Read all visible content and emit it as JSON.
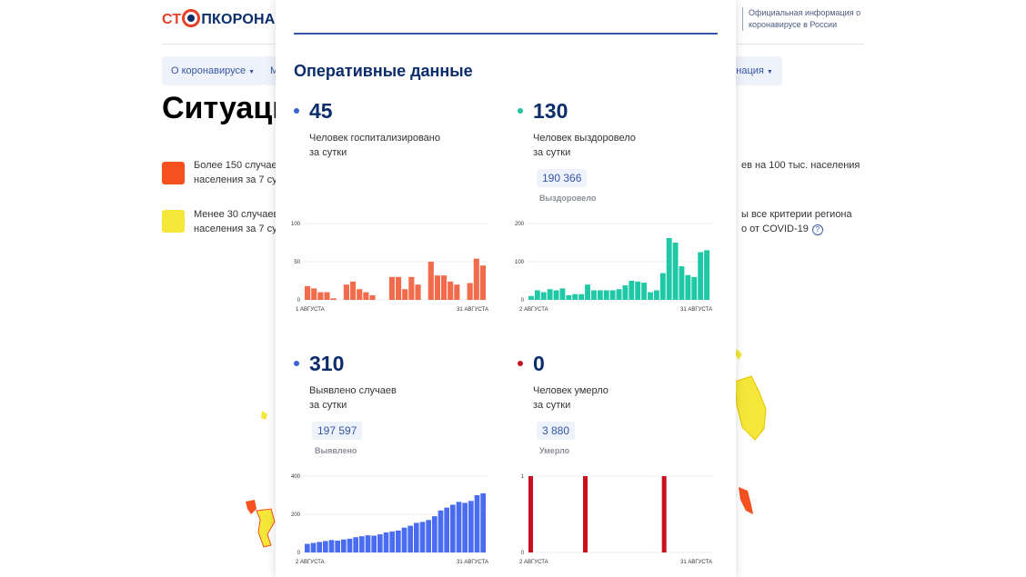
{
  "header": {
    "logo": {
      "part1": "СТ",
      "part2": "ПКОРОНАВ"
    },
    "official_info": "Официальная информация о коронавирусе в России"
  },
  "nav": {
    "about_label": "О коронавирусе",
    "second_label": "М",
    "vaccination_label": "кцинация"
  },
  "page": {
    "title": "Ситуаци"
  },
  "legend": {
    "red_color": "#f4511e",
    "yellow_color": "#f5e73a",
    "red_line1": "Более 150 случаев",
    "red_line2": "населения за 7 су",
    "red_right": "ев на 100 тыс. населения",
    "yellow_line1": "Менее 30 случаев",
    "yellow_line2": "населения за 7 су",
    "yellow_right1": "ы все критерии региона",
    "yellow_right2": "о от COVID-19",
    "help_icon": "?"
  },
  "panel": {
    "title": "Оперативные данные",
    "hosp": {
      "value": "45",
      "label_line1": "Человек госпитализировано",
      "label_line2": "за сутки",
      "dot_color": "#3b63d8"
    },
    "recovered": {
      "value": "130",
      "label_line1": "Человек выздоровело",
      "label_line2": "за сутки",
      "total": "190 366",
      "total_label": "Выздоровело",
      "dot_color": "#20c3a0"
    },
    "cases": {
      "value": "310",
      "label_line1": "Выявлено случаев",
      "label_line2": "за сутки",
      "total": "197 597",
      "total_label": "Выявлено",
      "dot_color": "#3b63d8"
    },
    "deaths": {
      "value": "0",
      "label_line1": "Человек умерло",
      "label_line2": "за сутки",
      "total": "3 880",
      "total_label": "Умерло",
      "dot_color": "#c9101e"
    }
  },
  "chart_data": [
    {
      "type": "bar",
      "name": "hosp",
      "color": "#f06c4c",
      "x_start_label": "1 АВГУСТА",
      "x_end_label": "31 АВГУСТА",
      "yticks": [
        0,
        50,
        100
      ],
      "ylim": [
        0,
        100
      ],
      "values": [
        18,
        15,
        10,
        10,
        2,
        0,
        20,
        24,
        14,
        10,
        6,
        0,
        0,
        30,
        30,
        14,
        30,
        20,
        0,
        50,
        32,
        32,
        24,
        20,
        0,
        22,
        54,
        45
      ]
    },
    {
      "type": "bar",
      "name": "recovered",
      "color": "#1fc9a6",
      "x_start_label": "2 АВГУСТА",
      "x_end_label": "31 АВГУСТА",
      "yticks": [
        0,
        100,
        200
      ],
      "ylim": [
        0,
        200
      ],
      "values": [
        10,
        25,
        20,
        28,
        25,
        30,
        12,
        15,
        15,
        40,
        25,
        25,
        25,
        25,
        28,
        38,
        50,
        48,
        45,
        20,
        25,
        70,
        162,
        150,
        88,
        65,
        60,
        125,
        130
      ]
    },
    {
      "type": "bar",
      "name": "cases",
      "color": "#4a6cf0",
      "x_start_label": "2 АВГУСТА",
      "x_end_label": "31 АВГУСТА",
      "yticks": [
        0,
        200,
        400
      ],
      "ylim": [
        0,
        400
      ],
      "values": [
        45,
        50,
        55,
        60,
        65,
        62,
        68,
        72,
        80,
        85,
        90,
        88,
        95,
        105,
        110,
        115,
        130,
        140,
        155,
        160,
        170,
        190,
        220,
        235,
        250,
        265,
        260,
        270,
        300,
        310
      ]
    },
    {
      "type": "bar",
      "name": "deaths",
      "color": "#c9101e",
      "x_start_label": "2 АВГУСТА",
      "x_end_label": "31 АВГУСТА",
      "yticks": [
        0,
        1
      ],
      "ylim": [
        0,
        1
      ],
      "values": [
        1,
        0,
        0,
        0,
        0,
        0,
        0,
        0,
        0,
        1,
        0,
        0,
        0,
        0,
        0,
        0,
        0,
        0,
        0,
        0,
        0,
        0,
        1,
        0,
        0,
        0,
        0,
        0,
        0,
        0
      ]
    }
  ]
}
